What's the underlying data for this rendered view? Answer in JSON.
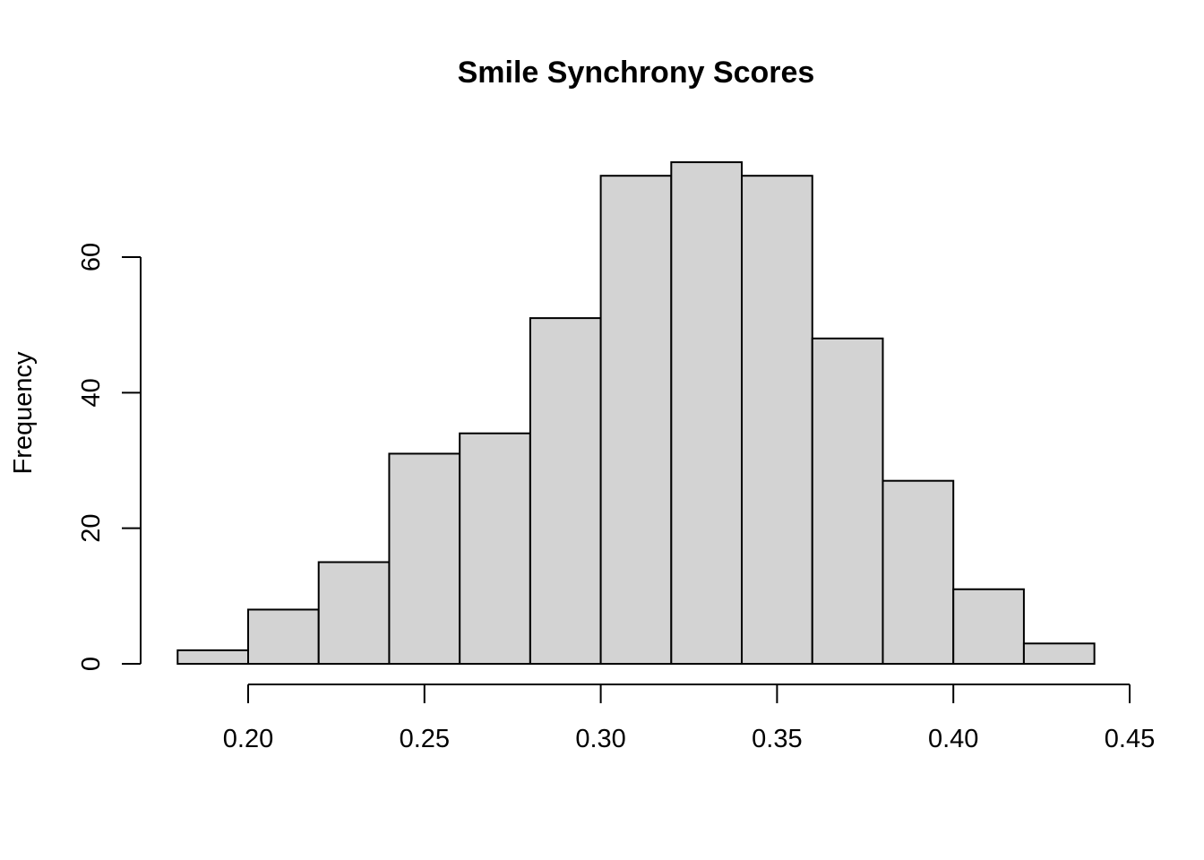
{
  "chart_data": {
    "type": "bar",
    "subtype": "histogram",
    "title": "Smile Synchrony Scores",
    "xlabel": "",
    "ylabel": "Frequency",
    "bins": [
      {
        "start": 0.18,
        "end": 0.2,
        "count": 2
      },
      {
        "start": 0.2,
        "end": 0.22,
        "count": 8
      },
      {
        "start": 0.22,
        "end": 0.24,
        "count": 15
      },
      {
        "start": 0.24,
        "end": 0.26,
        "count": 31
      },
      {
        "start": 0.26,
        "end": 0.28,
        "count": 34
      },
      {
        "start": 0.28,
        "end": 0.3,
        "count": 51
      },
      {
        "start": 0.3,
        "end": 0.32,
        "count": 72
      },
      {
        "start": 0.32,
        "end": 0.34,
        "count": 74
      },
      {
        "start": 0.34,
        "end": 0.36,
        "count": 72
      },
      {
        "start": 0.36,
        "end": 0.38,
        "count": 48
      },
      {
        "start": 0.38,
        "end": 0.4,
        "count": 27
      },
      {
        "start": 0.4,
        "end": 0.42,
        "count": 11
      },
      {
        "start": 0.42,
        "end": 0.44,
        "count": 3
      }
    ],
    "xticks": [
      {
        "value": 0.2,
        "label": "0.20"
      },
      {
        "value": 0.25,
        "label": "0.25"
      },
      {
        "value": 0.3,
        "label": "0.30"
      },
      {
        "value": 0.35,
        "label": "0.35"
      },
      {
        "value": 0.4,
        "label": "0.40"
      },
      {
        "value": 0.45,
        "label": "0.45"
      }
    ],
    "yticks": [
      {
        "value": 0,
        "label": "0"
      },
      {
        "value": 20,
        "label": "20"
      },
      {
        "value": 40,
        "label": "40"
      },
      {
        "value": 60,
        "label": "60"
      }
    ],
    "xlim": [
      0.18,
      0.45
    ],
    "ylim": [
      0,
      74
    ],
    "grid": false,
    "legend": "none",
    "colors": {
      "bar_fill": "#d3d3d3",
      "bar_stroke": "#000000",
      "background": "#ffffff"
    }
  }
}
